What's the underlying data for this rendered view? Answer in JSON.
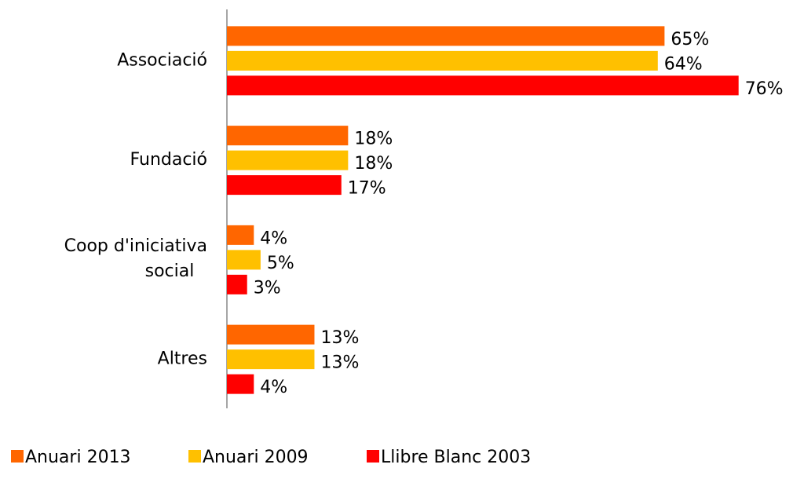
{
  "chart_data": {
    "type": "bar",
    "orientation": "horizontal",
    "categories": [
      "Associació",
      "Fundació",
      "Coop d'iniciativa social",
      "Altres"
    ],
    "series": [
      {
        "name": "Anuari 2013",
        "color": "#ff6600",
        "values": [
          65,
          18,
          4,
          13
        ],
        "value_labels": [
          "65%",
          "18%",
          "4%",
          "13%"
        ]
      },
      {
        "name": "Anuari 2009",
        "color": "#ffc000",
        "values": [
          64,
          18,
          5,
          13
        ],
        "value_labels": [
          "64%",
          "18%",
          "5%",
          "13%"
        ]
      },
      {
        "name": "Llibre Blanc 2003",
        "color": "#ff0000",
        "values": [
          76,
          17,
          3,
          4
        ],
        "value_labels": [
          "76%",
          "17%",
          "3%",
          "4%"
        ]
      }
    ],
    "xlim": [
      0,
      80
    ],
    "legend": "bottom"
  }
}
